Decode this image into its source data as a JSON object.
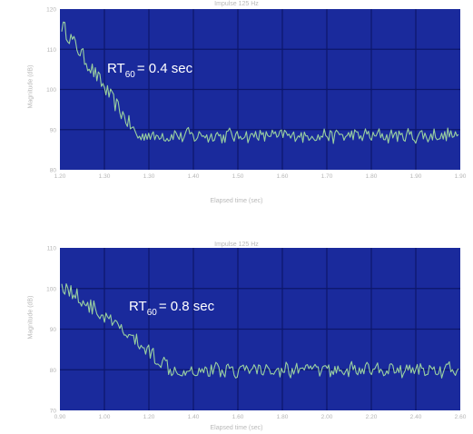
{
  "chart_data": [
    {
      "type": "line",
      "title": "Impulse 125 Hz",
      "xlabel": "Elapsed time (sec)",
      "ylabel": "Magnitude (dB)",
      "annotation": {
        "prefix": "RT",
        "sub": "60",
        "suffix": "= 0.4 sec"
      },
      "xticks": [
        "1.20",
        "1.30",
        "1.30",
        "1.40",
        "1.50",
        "1.60",
        "1.70",
        "1.80",
        "1.90",
        "1.90"
      ],
      "yticks": [
        "120",
        "110",
        "100",
        "90",
        "80"
      ],
      "ylim": [
        80,
        120
      ],
      "background": "#1a2a9c",
      "line_color": "#9ad0a0",
      "grid": true,
      "series": [
        {
          "noise_floor": 88.5,
          "start_peak": 116,
          "decay_end_fraction": 0.19
        }
      ]
    },
    {
      "type": "line",
      "title": "Impulse 125 Hz",
      "xlabel": "Elapsed time (sec)",
      "ylabel": "Magnitude (dB)",
      "annotation": {
        "prefix": "RT",
        "sub": "60",
        "suffix": "= 0.8 sec"
      },
      "xticks": [
        "0.90",
        "1.00",
        "1.20",
        "1.40",
        "1.60",
        "1.80",
        "2.00",
        "2.20",
        "2.40",
        "2.60"
      ],
      "yticks": [
        "110",
        "100",
        "90",
        "80",
        "70"
      ],
      "ylim": [
        70,
        110
      ],
      "background": "#1a2a9c",
      "line_color": "#9ad0a0",
      "grid": true,
      "series": [
        {
          "noise_floor": 80,
          "start_peak": 101,
          "decay_end_fraction": 0.28
        }
      ]
    }
  ]
}
